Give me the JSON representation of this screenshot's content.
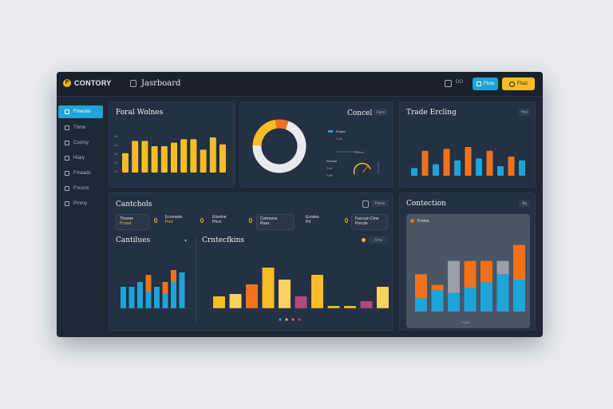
{
  "app": {
    "brand": "CONTORY",
    "logo_letter": "P",
    "page_title": "Jasrboard"
  },
  "toolbar": {
    "icon_label": "DO",
    "blue_button": "Ftow",
    "yellow_button": "Fhaz"
  },
  "sidebar": {
    "items": [
      {
        "label": "Fmerals",
        "active": true
      },
      {
        "label": "Thme"
      },
      {
        "label": "Cuorsy"
      },
      {
        "label": "Hiary"
      },
      {
        "label": "Fmeads"
      },
      {
        "label": "Fncons"
      },
      {
        "label": "Pmmy"
      }
    ]
  },
  "cards": {
    "focal": {
      "title": "Foral Wolnes"
    },
    "concel": {
      "title": "Concel",
      "btn": "Face",
      "legend1": "Fmord",
      "legend2": "Cold",
      "legend3": "Pkome",
      "legend4": "Ficome",
      "legend5": "Fod",
      "legend6": "Fofe"
    },
    "trade": {
      "title": "Trade Ercling",
      "btn": "Hre"
    },
    "earnings": {
      "title": "Cantchols",
      "btn": "Pame",
      "chips": [
        {
          "l1": "Tfoeme",
          "l2": "Pcond"
        },
        {
          "l1": "Ecomede",
          "l2": "Prec"
        },
        {
          "l1": "Etordne",
          "l2": "Phce"
        },
        {
          "l1": "Conmene",
          "l2": "Rues"
        },
        {
          "l1": "Ecndes",
          "l2": "Pd"
        },
        {
          "l1": "Faccum Dine",
          "l2": "Porcde"
        }
      ]
    },
    "contilues": {
      "title": "Cantilues"
    },
    "collections": {
      "title": "Crntecfkins",
      "btn": "Fina"
    },
    "contection": {
      "title": "Contection",
      "btn": "Ag",
      "legend": "Fromo",
      "xlabel": "Frane"
    }
  },
  "colors": {
    "accent_blue": "#1ea4d8",
    "accent_yellow": "#f6bd25",
    "accent_orange": "#f2711c",
    "panel": "#243043"
  },
  "chart_data": [
    {
      "type": "bar",
      "title": "Foral Wolnes",
      "series": [
        {
          "values": [
            22,
            36,
            36,
            30,
            30,
            34,
            38,
            38,
            26,
            40,
            32
          ]
        }
      ],
      "ylim": [
        0,
        50
      ],
      "yticks": [
        "50",
        "40",
        "30",
        "20",
        "10"
      ]
    },
    {
      "type": "pie",
      "title": "Concel",
      "values": [
        70,
        22,
        8
      ],
      "colors": [
        "#e8eaee",
        "#f6bd25",
        "#f2711c"
      ]
    },
    {
      "type": "bar",
      "title": "Trade Ercling",
      "series": [
        {
          "color": "#1ea4d8",
          "values": [
            8,
            14,
            12,
            18,
            16,
            20,
            18,
            22,
            10,
            14,
            16
          ]
        },
        {
          "color": "#f2711c",
          "values": [
            0,
            26,
            0,
            28,
            0,
            30,
            0,
            26,
            0,
            20,
            0
          ]
        }
      ],
      "ylim": [
        0,
        50
      ]
    },
    {
      "type": "bar",
      "title": "Cantilues",
      "series": [
        {
          "color": "#1ea4d8",
          "values": [
            18,
            18,
            22,
            14,
            18,
            12,
            22,
            30
          ]
        },
        {
          "color": "#f2711c",
          "values": [
            0,
            0,
            0,
            14,
            0,
            10,
            10,
            0
          ]
        }
      ],
      "ylim": [
        0,
        40
      ]
    },
    {
      "type": "bar",
      "title": "Crntecfkins",
      "series": [
        {
          "values": [
            10,
            12,
            20,
            34,
            24,
            10,
            28,
            2,
            2,
            6,
            18
          ]
        }
      ],
      "colors": [
        "#f6bd25",
        "#f9d163",
        "#f2711c",
        "#f6bd25",
        "#f9d163",
        "#b14a7a",
        "#f6bd25",
        "#f6bd25",
        "#f6bd25",
        "#b14a7a",
        "#f9d163"
      ],
      "ylim": [
        0,
        40
      ]
    },
    {
      "type": "bar",
      "title": "Contection",
      "series": [
        {
          "color": "#1ea4d8",
          "values": [
            10,
            16,
            14,
            18,
            22,
            28,
            24
          ]
        },
        {
          "color": "#f2711c",
          "values": [
            18,
            4,
            0,
            20,
            16,
            0,
            26
          ]
        },
        {
          "color": "#9aa0a8",
          "values": [
            0,
            0,
            24,
            0,
            0,
            10,
            0
          ]
        }
      ],
      "ylim": [
        0,
        60
      ]
    }
  ]
}
